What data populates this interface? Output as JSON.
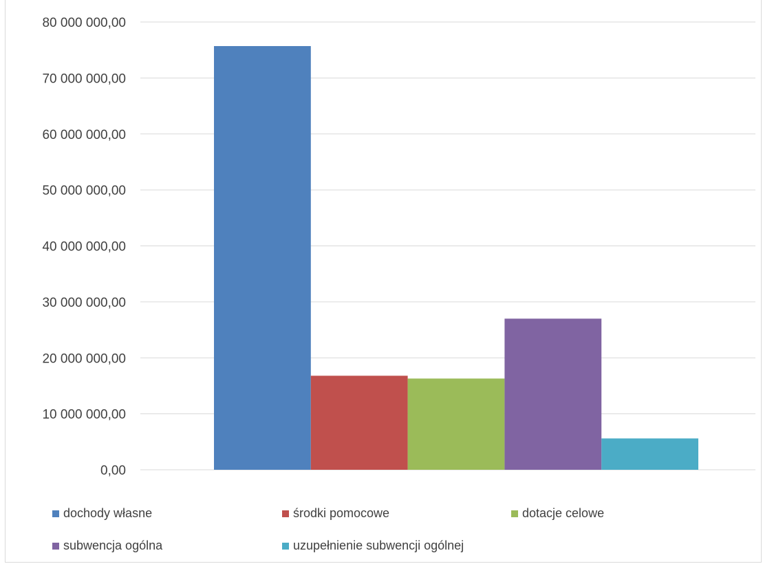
{
  "chart_data": {
    "type": "bar",
    "title": "",
    "xlabel": "",
    "ylabel": "",
    "ylim": [
      0,
      80000000
    ],
    "yticks": [
      "0,00",
      "10 000 000,00",
      "20 000 000,00",
      "30 000 000,00",
      "40 000 000,00",
      "50 000 000,00",
      "60 000 000,00",
      "70 000 000,00",
      "80 000 000,00"
    ],
    "grid": true,
    "legend_position": "bottom",
    "categories": [
      ""
    ],
    "series": [
      {
        "name": "dochody własne",
        "values": [
          75700000
        ],
        "color": "#4F81BD"
      },
      {
        "name": "środki pomocowe",
        "values": [
          16800000
        ],
        "color": "#C0504D"
      },
      {
        "name": "dotacje celowe",
        "values": [
          16300000
        ],
        "color": "#9BBB59"
      },
      {
        "name": "subwencja ogólna",
        "values": [
          27000000
        ],
        "color": "#8064A2"
      },
      {
        "name": "uzupełnienie subwencji ogólnej",
        "values": [
          5600000
        ],
        "color": "#4BACC6"
      }
    ]
  }
}
